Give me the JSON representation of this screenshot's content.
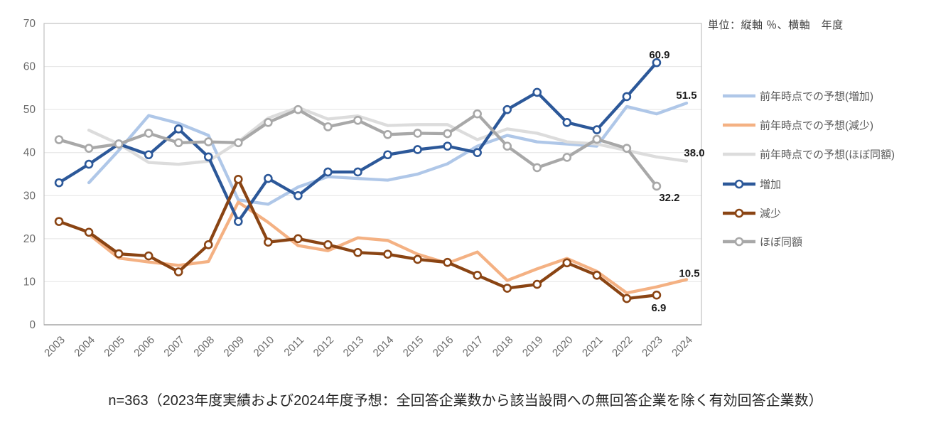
{
  "header": {
    "unit_note": "単位：縦軸 ％、横軸　年度"
  },
  "caption": "n=363（2023年度実績および2024年度予想：全回答企業数から該当設問への無回答企業を除く有効回答企業数）",
  "colors": {
    "grid": "#e4e4e4",
    "plot_border": "#c0c0c0",
    "axis_label": "#6b6b6b",
    "legend_text": "#595959",
    "data_label": "#1a1a1a"
  },
  "chart_data": {
    "type": "line",
    "title": "",
    "xlabel": "年度",
    "ylabel": "%",
    "x": [
      2003,
      2004,
      2005,
      2006,
      2007,
      2008,
      2009,
      2010,
      2011,
      2012,
      2013,
      2014,
      2015,
      2016,
      2017,
      2018,
      2019,
      2020,
      2021,
      2022,
      2023,
      2024
    ],
    "ylim": [
      0,
      70
    ],
    "ytick_interval": 10,
    "grid": true,
    "legend_position": "right",
    "series": [
      {
        "name": "前年時点での予想(増加)",
        "color": "#afc7e8",
        "marker": false,
        "values": [
          null,
          33.0,
          40.5,
          48.6,
          46.8,
          44.0,
          29.0,
          28.0,
          32.0,
          34.4,
          34.0,
          33.6,
          35.0,
          37.4,
          41.5,
          44.0,
          42.5,
          42.0,
          41.5,
          50.7,
          49.0,
          51.5
        ]
      },
      {
        "name": "前年時点での予想(減少)",
        "color": "#f4b183",
        "marker": false,
        "values": [
          null,
          21.0,
          15.5,
          14.6,
          13.8,
          14.7,
          28.5,
          23.8,
          18.4,
          17.2,
          20.2,
          19.6,
          16.4,
          14.3,
          16.9,
          10.3,
          13.0,
          15.4,
          12.4,
          7.4,
          8.8,
          10.5
        ]
      },
      {
        "name": "前年時点での予想(ほぼ同額)",
        "color": "#dcdcdc",
        "marker": false,
        "values": [
          null,
          45.2,
          42.0,
          37.7,
          37.3,
          38.0,
          42.5,
          48.0,
          50.5,
          47.8,
          48.5,
          46.3,
          46.5,
          46.5,
          43.0,
          45.5,
          44.5,
          42.5,
          42.0,
          40.5,
          39.0,
          38.0
        ]
      },
      {
        "name": "増加",
        "color": "#2c5899",
        "marker": true,
        "values": [
          33.0,
          37.3,
          42.0,
          39.5,
          45.5,
          39.0,
          24.0,
          34.0,
          30.0,
          35.5,
          35.5,
          39.5,
          40.7,
          41.5,
          40.0,
          50.0,
          54.0,
          47.0,
          45.3,
          53.0,
          60.9,
          null
        ]
      },
      {
        "name": "減少",
        "color": "#8a4413",
        "marker": true,
        "values": [
          24.0,
          21.5,
          16.5,
          16.0,
          12.3,
          18.6,
          33.8,
          19.2,
          20.0,
          18.6,
          16.8,
          16.4,
          15.2,
          14.5,
          11.5,
          8.5,
          9.4,
          14.4,
          11.5,
          6.1,
          6.9,
          null
        ]
      },
      {
        "name": "ほぼ同額",
        "color": "#a8a8a8",
        "marker": true,
        "values": [
          43.0,
          41.0,
          42.0,
          44.5,
          42.3,
          42.5,
          42.3,
          47.0,
          50.0,
          46.0,
          47.5,
          44.2,
          44.5,
          44.4,
          49.0,
          41.5,
          36.5,
          38.9,
          43.1,
          41.0,
          32.2,
          null
        ]
      }
    ],
    "annotations": [
      {
        "series": "増加",
        "year": 2023,
        "text": "60.9"
      },
      {
        "series": "前年時点での予想(増加)",
        "year": 2024,
        "text": "51.5"
      },
      {
        "series": "前年時点での予想(ほぼ同額)",
        "year": 2024,
        "text": "38.0"
      },
      {
        "series": "ほぼ同額",
        "year": 2023,
        "text": "32.2"
      },
      {
        "series": "前年時点での予想(減少)",
        "year": 2024,
        "text": "10.5"
      },
      {
        "series": "減少",
        "year": 2023,
        "text": "6.9"
      }
    ]
  }
}
